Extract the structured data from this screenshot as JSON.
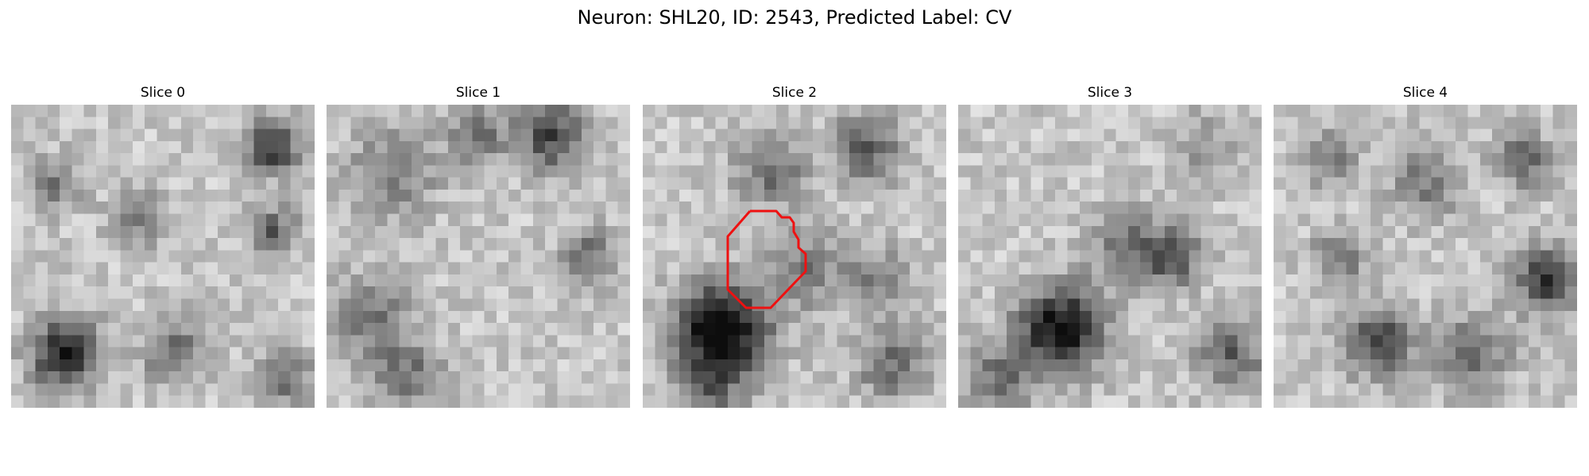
{
  "figure": {
    "title": "Neuron: SHL20, ID: 2543, Predicted Label: CV"
  },
  "panels": [
    {
      "title": "Slice 0",
      "seed": 11,
      "grid": 25
    },
    {
      "title": "Slice 1",
      "seed": 23,
      "grid": 25
    },
    {
      "title": "Slice 2",
      "seed": 37,
      "grid": 25,
      "contour": true
    },
    {
      "title": "Slice 3",
      "seed": 41,
      "grid": 25
    },
    {
      "title": "Slice 4",
      "seed": 53,
      "grid": 25
    }
  ],
  "colors": {
    "contour": "#ee1111",
    "background": "#ffffff"
  },
  "image_style": "grayscale-pixelated-em-patch"
}
